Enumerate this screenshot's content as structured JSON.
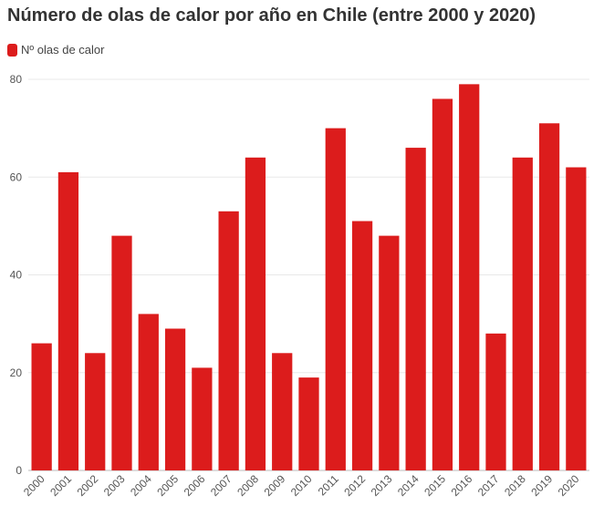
{
  "chart_data": {
    "type": "bar",
    "title": "Número de olas de calor por año en Chile (entre 2000 y 2020)",
    "legend": [
      {
        "label": "Nº olas de calor",
        "color": "#dc1c1c"
      }
    ],
    "categories": [
      "2000",
      "2001",
      "2002",
      "2003",
      "2004",
      "2005",
      "2006",
      "2007",
      "2008",
      "2009",
      "2010",
      "2011",
      "2012",
      "2013",
      "2014",
      "2015",
      "2016",
      "2017",
      "2018",
      "2019",
      "2020"
    ],
    "series": [
      {
        "name": "Nº olas de calor",
        "values": [
          26,
          61,
          24,
          48,
          32,
          29,
          21,
          53,
          64,
          24,
          19,
          70,
          51,
          48,
          66,
          76,
          79,
          28,
          64,
          71,
          62
        ]
      }
    ],
    "ylim": [
      0,
      80
    ],
    "yticks": [
      0,
      20,
      40,
      60,
      80
    ],
    "grid": true,
    "legend_position": "top-left",
    "bar_color": "#dc1c1c"
  }
}
